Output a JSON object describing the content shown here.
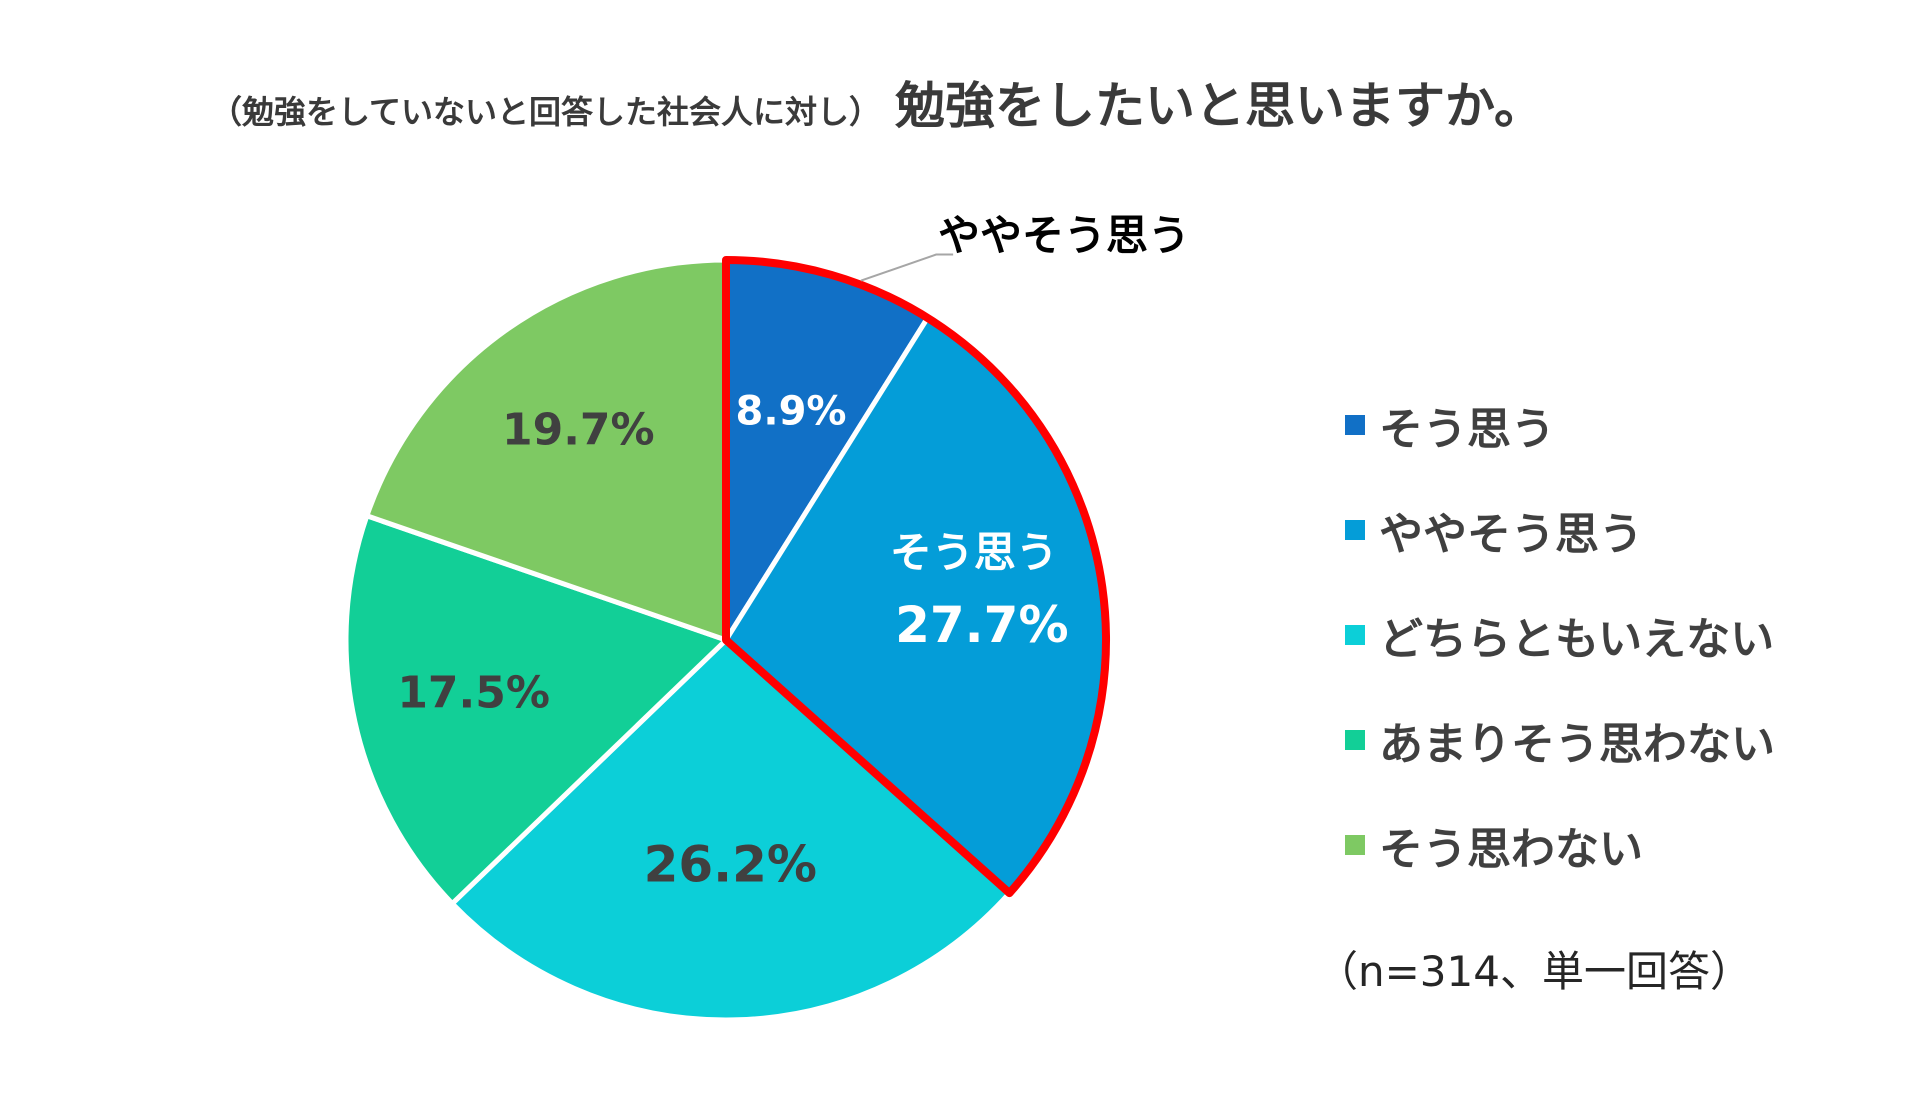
{
  "chart_data": {
    "type": "pie",
    "title_prefix": "（勉強をしていないと回答した社会人に対し）",
    "title": "勉強をしたいと思いますか。",
    "slices": [
      {
        "label": "そう思う",
        "value": 8.9,
        "display": "8.9%",
        "color": "#1170c6"
      },
      {
        "label": "ややそう思う",
        "value": 27.7,
        "display": "27.7%",
        "color": "#049dd8"
      },
      {
        "label": "どちらともいえない",
        "value": 26.2,
        "display": "26.2%",
        "color": "#0ccfd8"
      },
      {
        "label": "あまりそう思わない",
        "value": 17.5,
        "display": "17.5%",
        "color": "#12cf97"
      },
      {
        "label": "そう思わない",
        "value": 19.7,
        "display": "19.7%",
        "color": "#7ec963"
      }
    ],
    "highlight": {
      "label": "そう思う",
      "color": "#ff0000"
    },
    "callout": "ややそう思う",
    "note": "（n=314、単一回答）",
    "legend_position": "right"
  }
}
